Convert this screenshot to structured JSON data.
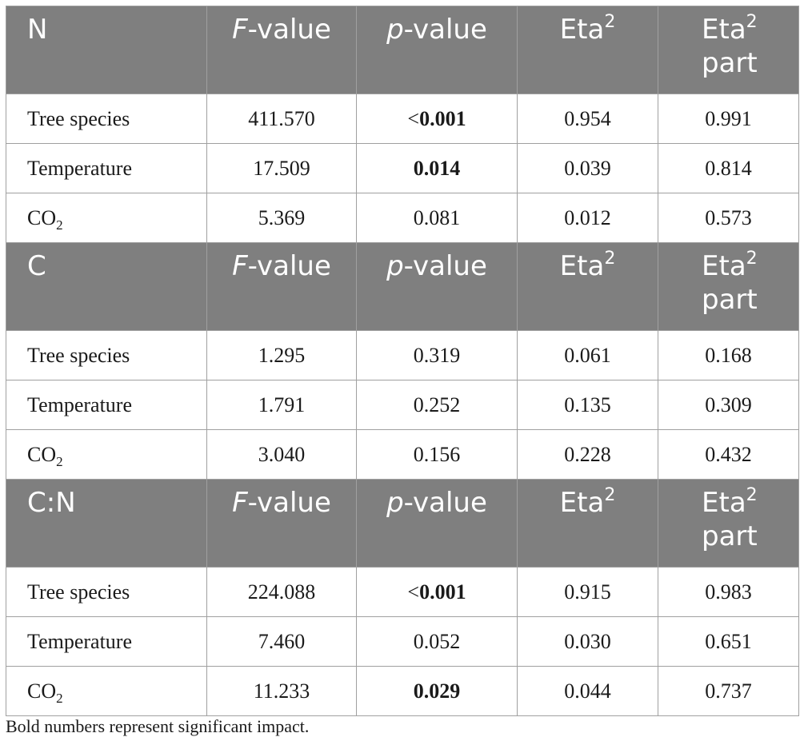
{
  "header_labels": {
    "f_value_italic": "F",
    "f_value_rest": "-value",
    "p_value_italic": "p",
    "p_value_rest": "-value",
    "eta": "Eta",
    "eta_sup": "2",
    "eta_part_line1": "Eta",
    "eta_part_sup": "2",
    "eta_part_line2": "part"
  },
  "sections": [
    {
      "title": "N",
      "rows": [
        {
          "label": "Tree species",
          "label_sub": "",
          "f_value": "411.570",
          "p_prefix": "<",
          "p_value": "0.001",
          "p_bold": true,
          "eta2": "0.954",
          "eta2_part": "0.991"
        },
        {
          "label": "Temperature",
          "label_sub": "",
          "f_value": "17.509",
          "p_prefix": "",
          "p_value": "0.014",
          "p_bold": true,
          "eta2": "0.039",
          "eta2_part": "0.814"
        },
        {
          "label": "CO",
          "label_sub": "2",
          "f_value": "5.369",
          "p_prefix": "",
          "p_value": "0.081",
          "p_bold": false,
          "eta2": "0.012",
          "eta2_part": "0.573"
        }
      ]
    },
    {
      "title": "C",
      "rows": [
        {
          "label": "Tree species",
          "label_sub": "",
          "f_value": "1.295",
          "p_prefix": "",
          "p_value": "0.319",
          "p_bold": false,
          "eta2": "0.061",
          "eta2_part": "0.168"
        },
        {
          "label": "Temperature",
          "label_sub": "",
          "f_value": "1.791",
          "p_prefix": "",
          "p_value": "0.252",
          "p_bold": false,
          "eta2": "0.135",
          "eta2_part": "0.309"
        },
        {
          "label": "CO",
          "label_sub": "2",
          "f_value": "3.040",
          "p_prefix": "",
          "p_value": "0.156",
          "p_bold": false,
          "eta2": "0.228",
          "eta2_part": "0.432"
        }
      ]
    },
    {
      "title": "C:N",
      "rows": [
        {
          "label": "Tree species",
          "label_sub": "",
          "f_value": "224.088",
          "p_prefix": "<",
          "p_value": "0.001",
          "p_bold": true,
          "eta2": "0.915",
          "eta2_part": "0.983"
        },
        {
          "label": "Temperature",
          "label_sub": "",
          "f_value": "7.460",
          "p_prefix": "",
          "p_value": "0.052",
          "p_bold": false,
          "eta2": "0.030",
          "eta2_part": "0.651"
        },
        {
          "label": "CO",
          "label_sub": "2",
          "f_value": "11.233",
          "p_prefix": "",
          "p_value": "0.029",
          "p_bold": true,
          "eta2": "0.044",
          "eta2_part": "0.737"
        }
      ]
    }
  ],
  "footnote": "Bold numbers represent significant impact.",
  "colors": {
    "header_background": "#7f7f7f",
    "header_text": "#ffffff",
    "grid_line": "#a0a0a0"
  }
}
